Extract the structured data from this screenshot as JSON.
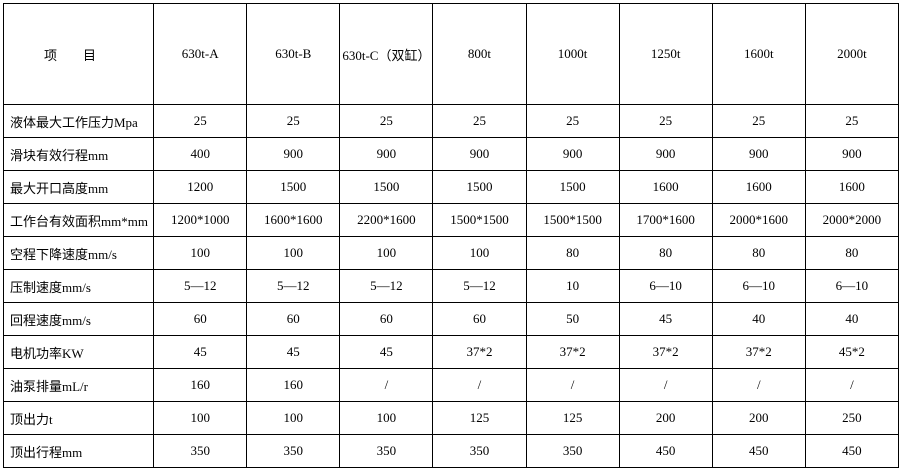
{
  "table": {
    "header": [
      "项　　目",
      "630t-A",
      "630t-B",
      "630t-C（双缸）",
      "800t",
      "1000t",
      "1250t",
      "1600t",
      "2000t"
    ],
    "rows": [
      [
        "液体最大工作压力Mpa",
        "25",
        "25",
        "25",
        "25",
        "25",
        "25",
        "25",
        "25"
      ],
      [
        "滑块有效行程mm",
        "400",
        "900",
        "900",
        "900",
        "900",
        "900",
        "900",
        "900"
      ],
      [
        "最大开口高度mm",
        "1200",
        "1500",
        "1500",
        "1500",
        "1500",
        "1600",
        "1600",
        "1600"
      ],
      [
        "工作台有效面积mm*mm",
        "1200*1000",
        "1600*1600",
        "2200*1600",
        "1500*1500",
        "1500*1500",
        "1700*1600",
        "2000*1600",
        "2000*2000"
      ],
      [
        "空程下降速度mm/s",
        "100",
        "100",
        "100",
        "100",
        "80",
        "80",
        "80",
        "80"
      ],
      [
        "压制速度mm/s",
        "5—12",
        "5—12",
        "5—12",
        "5—12",
        "10",
        "6—10",
        "6—10",
        "6—10"
      ],
      [
        "回程速度mm/s",
        "60",
        "60",
        "60",
        "60",
        "50",
        "45",
        "40",
        "40"
      ],
      [
        "电机功率KW",
        "45",
        "45",
        "45",
        "37*2",
        "37*2",
        "37*2",
        "37*2",
        "45*2"
      ],
      [
        "油泵排量mL/r",
        "160",
        "160",
        "/",
        "/",
        "/",
        "/",
        "/",
        "/"
      ],
      [
        "顶出力t",
        "100",
        "100",
        "100",
        "125",
        "125",
        "200",
        "200",
        "250"
      ],
      [
        "顶出行程mm",
        "350",
        "350",
        "350",
        "350",
        "350",
        "450",
        "450",
        "450"
      ]
    ]
  }
}
